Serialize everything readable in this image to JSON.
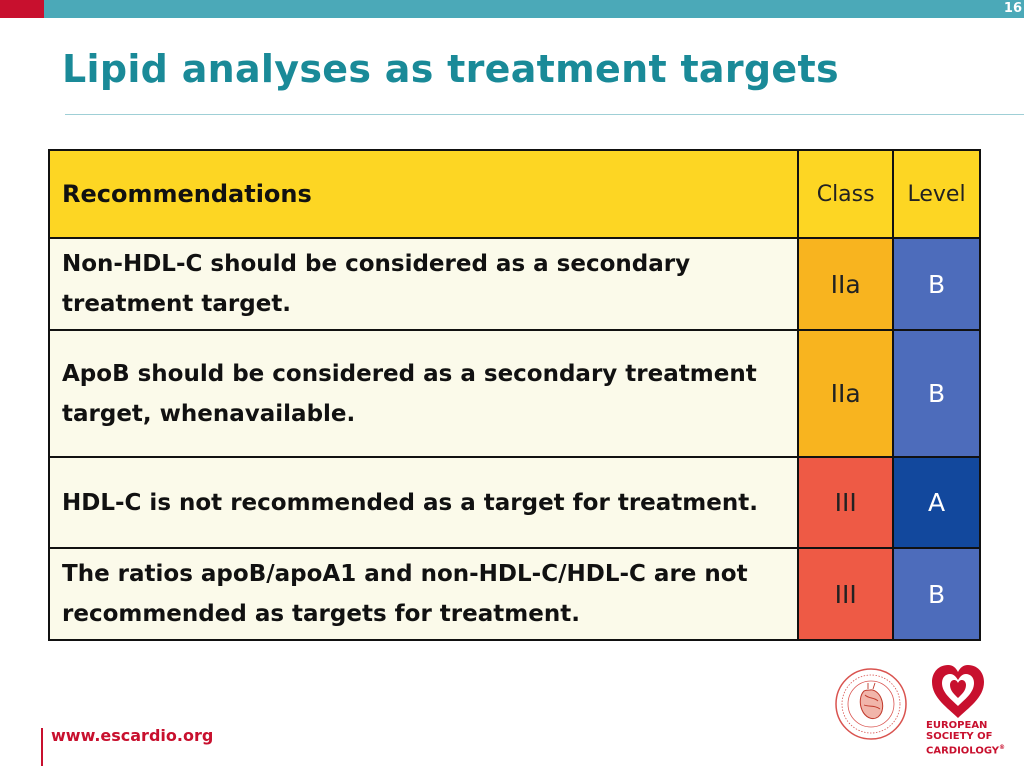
{
  "slide": {
    "number": "16",
    "title": "Lipid analyses as treatment targets"
  },
  "table": {
    "headers": {
      "recommendations": "Recommendations",
      "class": "Class",
      "level": "Level"
    },
    "rows": [
      {
        "text": "Non-HDL-C should be considered as a secondary treatment target.",
        "class": "IIa",
        "level": "B"
      },
      {
        "text": "ApoB should be considered as a secondary treatment target, whenavailable.",
        "class": "IIa",
        "level": "B"
      },
      {
        "text": "HDL-C is not recommended as a target for treatment.",
        "class": "III",
        "level": "A"
      },
      {
        "text": "The ratios apoB/apoA1 and non-HDL-C/HDL-C are not recommended as targets for treatment.",
        "class": "III",
        "level": "B"
      }
    ]
  },
  "colors": {
    "header_yellow": "#fdd623",
    "class_iia": "#f8b41f",
    "class_iii": "#ee5a45",
    "level_b": "#4d6cbb",
    "level_a": "#12489d",
    "accent_teal": "#1a8a98",
    "accent_red": "#c8102e"
  },
  "footer": {
    "url": "www.escardio.org",
    "logo_lines": [
      "EUROPEAN",
      "SOCIETY OF",
      "CARDIOLOGY"
    ],
    "logo_mark": "®",
    "seal_name": "ESC seal logo",
    "logo_icon": "heart-logo-icon"
  }
}
